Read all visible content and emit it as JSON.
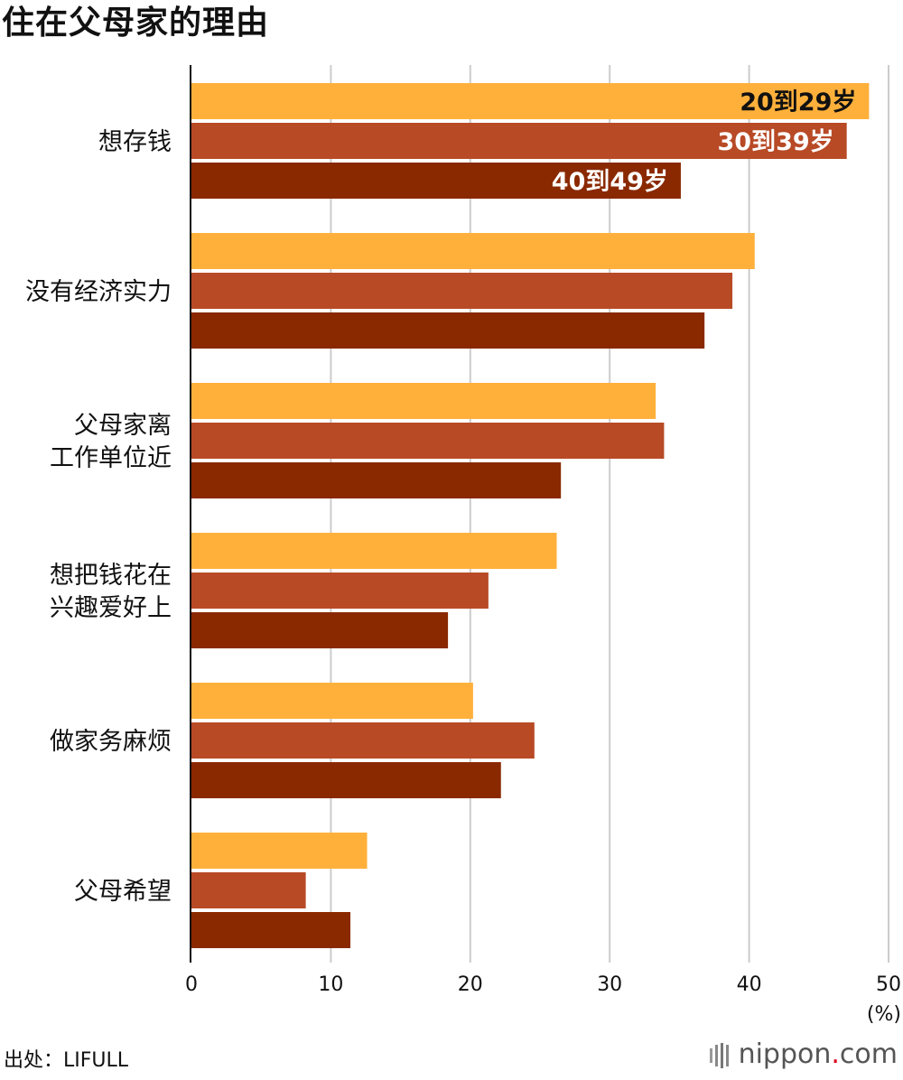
{
  "title": "住在父母家的理由",
  "source": "出处：LIFULL",
  "logo": {
    "name": "nippon",
    "dot": ".",
    "tld": "com"
  },
  "colors": {
    "age20": "#ffb03b",
    "age30": "#b84a26",
    "age40": "#8a2900",
    "grid": "#cccccc",
    "axis": "#111111"
  },
  "chart_data": {
    "type": "bar",
    "orientation": "horizontal",
    "categories": [
      [
        "想存钱"
      ],
      [
        "没有经济实力"
      ],
      [
        "父母家离",
        "工作单位近"
      ],
      [
        "想把钱花在",
        "兴趣爱好上"
      ],
      [
        "做家务麻烦"
      ],
      [
        "父母希望"
      ]
    ],
    "series": [
      {
        "name": "20到29岁",
        "color": "#ffb03b",
        "label_color": "#111111",
        "values": [
          48.6,
          40.4,
          33.3,
          26.2,
          20.2,
          12.6
        ]
      },
      {
        "name": "30到39岁",
        "color": "#b84a26",
        "label_color": "#ffffff",
        "values": [
          47.0,
          38.8,
          33.9,
          21.3,
          24.6,
          8.2
        ]
      },
      {
        "name": "40到49岁",
        "color": "#8a2900",
        "label_color": "#ffffff",
        "values": [
          35.1,
          36.8,
          26.5,
          18.4,
          22.2,
          11.4
        ]
      }
    ],
    "xlim": [
      0,
      50
    ],
    "xticks": [
      0,
      10,
      20,
      30,
      40,
      50
    ],
    "unit": "(%)",
    "grid": true,
    "legend": "inside-first-group-bars"
  }
}
